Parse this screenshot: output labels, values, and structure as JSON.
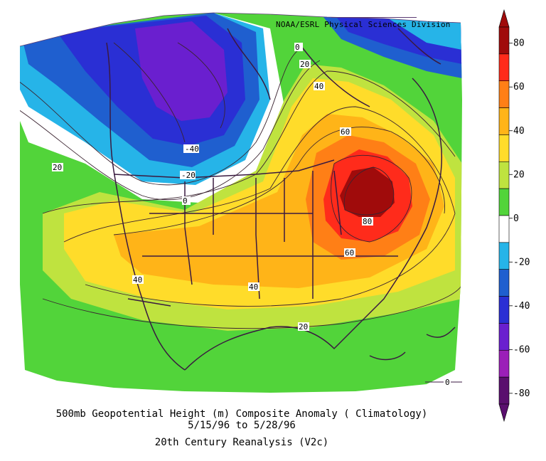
{
  "credit": "NOAA/ESRL Physical Sciences Division",
  "caption": {
    "line1": "500mb Geopotential Height (m) Composite Anomaly ( Climatology)",
    "line2": "5/15/96  to 5/28/96",
    "line3": "20th Century Reanalysis (V2c)"
  },
  "legend": {
    "tick_labels": [
      "80",
      "60",
      "40",
      "20",
      "0",
      "-20",
      "-40",
      "-60",
      "-80"
    ],
    "colors": [
      "#a00b0b",
      "#ff2b1b",
      "#ff7f16",
      "#ffb418",
      "#ffdc2a",
      "#bfe33f",
      "#52d43a",
      "#ffffff",
      "#26b4e8",
      "#1f5fcf",
      "#2a2fd4",
      "#6a1fcf",
      "#9b1fb8",
      "#5a0f6e"
    ]
  },
  "contour_labels": [
    "-40",
    "-20",
    "0",
    "0",
    "20",
    "20",
    "40",
    "60",
    "80",
    "60",
    "40",
    "20",
    "40",
    "0"
  ]
}
